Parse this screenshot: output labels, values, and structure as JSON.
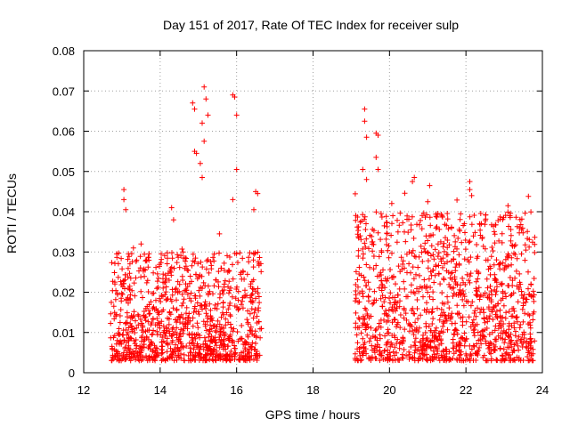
{
  "chart_data": {
    "type": "scatter",
    "title": "Day 151 of 2017, Rate Of TEC Index for receiver sulp",
    "xlabel": "GPS time / hours",
    "ylabel": "ROTI / TECUs",
    "xlim": [
      12,
      24
    ],
    "ylim": [
      0,
      0.08
    ],
    "x_ticks": [
      12,
      14,
      16,
      18,
      20,
      22,
      24
    ],
    "x_tick_labels": [
      "12",
      "14",
      "16",
      "18",
      "20",
      "22",
      "24"
    ],
    "y_ticks": [
      0,
      0.01,
      0.02,
      0.03,
      0.04,
      0.05,
      0.06,
      0.07,
      0.08
    ],
    "y_tick_labels": [
      "0",
      "0.01",
      "0.02",
      "0.03",
      "0.04",
      "0.05",
      "0.06",
      "0.07",
      "0.08"
    ],
    "grid": true,
    "marker": "+",
    "color": "#ff0000",
    "series": [
      {
        "name": "ROTI",
        "segments": [
          {
            "x_start": 12.7,
            "x_end": 16.65,
            "baseline_min": 0.003,
            "baseline_max": 0.03
          },
          {
            "x_start": 19.1,
            "x_end": 23.8,
            "baseline_min": 0.003,
            "baseline_max": 0.04
          }
        ],
        "points": [
          {
            "x": 13.05,
            "y": 0.0455
          },
          {
            "x": 13.05,
            "y": 0.043
          },
          {
            "x": 13.1,
            "y": 0.0405
          },
          {
            "x": 13.3,
            "y": 0.031
          },
          {
            "x": 13.5,
            "y": 0.032
          },
          {
            "x": 14.3,
            "y": 0.041
          },
          {
            "x": 14.35,
            "y": 0.038
          },
          {
            "x": 14.85,
            "y": 0.067
          },
          {
            "x": 14.9,
            "y": 0.0655
          },
          {
            "x": 14.9,
            "y": 0.055
          },
          {
            "x": 14.95,
            "y": 0.0545
          },
          {
            "x": 15.1,
            "y": 0.0485
          },
          {
            "x": 15.05,
            "y": 0.052
          },
          {
            "x": 15.15,
            "y": 0.071
          },
          {
            "x": 15.2,
            "y": 0.068
          },
          {
            "x": 15.25,
            "y": 0.064
          },
          {
            "x": 15.1,
            "y": 0.062
          },
          {
            "x": 15.15,
            "y": 0.0575
          },
          {
            "x": 15.55,
            "y": 0.0345
          },
          {
            "x": 15.9,
            "y": 0.069
          },
          {
            "x": 15.95,
            "y": 0.0685
          },
          {
            "x": 16.0,
            "y": 0.064
          },
          {
            "x": 15.9,
            "y": 0.043
          },
          {
            "x": 16.0,
            "y": 0.0505
          },
          {
            "x": 16.5,
            "y": 0.045
          },
          {
            "x": 16.55,
            "y": 0.0445
          },
          {
            "x": 16.45,
            "y": 0.0405
          },
          {
            "x": 19.35,
            "y": 0.0655
          },
          {
            "x": 19.35,
            "y": 0.0625
          },
          {
            "x": 19.4,
            "y": 0.0585
          },
          {
            "x": 19.3,
            "y": 0.0505
          },
          {
            "x": 19.4,
            "y": 0.048
          },
          {
            "x": 19.65,
            "y": 0.0595
          },
          {
            "x": 19.7,
            "y": 0.059
          },
          {
            "x": 19.65,
            "y": 0.0535
          },
          {
            "x": 19.7,
            "y": 0.0505
          },
          {
            "x": 20.65,
            "y": 0.0485
          },
          {
            "x": 20.6,
            "y": 0.0475
          },
          {
            "x": 21.05,
            "y": 0.0465
          },
          {
            "x": 21.0,
            "y": 0.0425
          },
          {
            "x": 22.1,
            "y": 0.0475
          },
          {
            "x": 22.1,
            "y": 0.0455
          },
          {
            "x": 22.15,
            "y": 0.044
          },
          {
            "x": 23.1,
            "y": 0.0415
          },
          {
            "x": 23.15,
            "y": 0.039
          },
          {
            "x": 23.4,
            "y": 0.036
          }
        ]
      }
    ]
  }
}
